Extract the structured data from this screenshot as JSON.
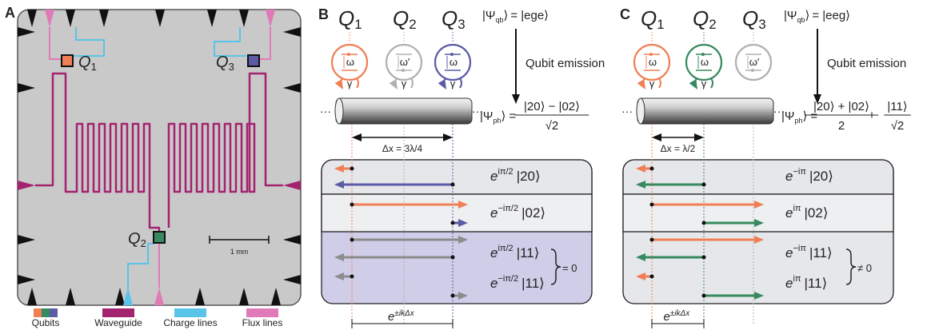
{
  "panel_a": {
    "label": "A",
    "qubits": [
      {
        "letter": "Q",
        "sub": "1"
      },
      {
        "letter": "Q",
        "sub": "2"
      },
      {
        "letter": "Q",
        "sub": "3"
      }
    ],
    "scale_bar": "1 mm",
    "legend": [
      "Qubits",
      "Waveguide",
      "Charge lines",
      "Flux lines"
    ]
  },
  "panel_b": {
    "label": "B",
    "qubits": [
      {
        "letter": "Q",
        "sub": "1"
      },
      {
        "letter": "Q",
        "sub": "2"
      },
      {
        "letter": "Q",
        "sub": "3"
      }
    ],
    "freq": [
      "ω",
      "ω′",
      "ω"
    ],
    "gamma": [
      "γ",
      "γ",
      "γ"
    ],
    "qubit_state": {
      "open": "|Ψ",
      "sub": "qb",
      "close": "⟩",
      "rhs": "= |ege⟩"
    },
    "emission": "Qubit emission",
    "photon_state": {
      "open": "|Ψ",
      "sub": "ph",
      "close": "⟩",
      "eq": "=",
      "num": "|20⟩ − |02⟩",
      "den": "√2"
    },
    "delta": "Δx = 3λ/4",
    "rows": [
      {
        "base": "e",
        "exp": "iπ/2",
        "ket": "|20⟩"
      },
      {
        "base": "e",
        "exp": "−iπ/2",
        "ket": "|02⟩"
      },
      {
        "base": "e",
        "exp": "iπ/2",
        "ket": "|11⟩"
      },
      {
        "base": "e",
        "exp": "−iπ/2",
        "ket": "|11⟩"
      }
    ],
    "result": "= 0",
    "phase": {
      "base": "e",
      "exp": "±ikΔx"
    }
  },
  "panel_c": {
    "label": "C",
    "qubits": [
      {
        "letter": "Q",
        "sub": "1"
      },
      {
        "letter": "Q",
        "sub": "2"
      },
      {
        "letter": "Q",
        "sub": "3"
      }
    ],
    "freq": [
      "ω",
      "ω",
      "ω′"
    ],
    "gamma": [
      "γ",
      "γ"
    ],
    "qubit_state": {
      "open": "|Ψ",
      "sub": "qb",
      "close": "⟩",
      "rhs": "= |eeg⟩"
    },
    "emission": "Qubit emission",
    "photon_state": {
      "open": "|Ψ",
      "sub": "ph",
      "close": "⟩",
      "eq": "=",
      "num": "|20⟩ + |02⟩",
      "den": "2",
      "plus": "+",
      "num2": "|11⟩",
      "den2": "√2"
    },
    "delta": "Δx = λ/2",
    "rows": [
      {
        "base": "e",
        "exp": "−iπ",
        "ket": "|20⟩"
      },
      {
        "base": "e",
        "exp": "iπ",
        "ket": "|02⟩"
      },
      {
        "base": "e",
        "exp": "−iπ",
        "ket": "|11⟩"
      },
      {
        "base": "e",
        "exp": "iπ",
        "ket": "|11⟩"
      }
    ],
    "result": "≠ 0",
    "phase": {
      "base": "e",
      "exp": "±ikΔx"
    }
  }
}
